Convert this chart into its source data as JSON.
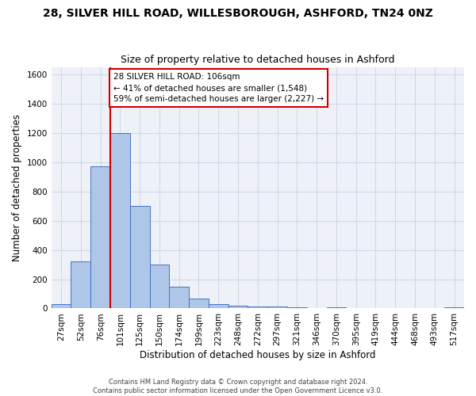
{
  "title_line1": "28, SILVER HILL ROAD, WILLESBOROUGH, ASHFORD, TN24 0NZ",
  "title_line2": "Size of property relative to detached houses in Ashford",
  "xlabel": "Distribution of detached houses by size in Ashford",
  "ylabel": "Number of detached properties",
  "footnote": "Contains HM Land Registry data © Crown copyright and database right 2024.\nContains public sector information licensed under the Open Government Licence v3.0.",
  "bar_labels": [
    "27sqm",
    "52sqm",
    "76sqm",
    "101sqm",
    "125sqm",
    "150sqm",
    "174sqm",
    "199sqm",
    "223sqm",
    "248sqm",
    "272sqm",
    "297sqm",
    "321sqm",
    "346sqm",
    "370sqm",
    "395sqm",
    "419sqm",
    "444sqm",
    "468sqm",
    "493sqm",
    "517sqm"
  ],
  "bar_values": [
    30,
    320,
    970,
    1200,
    700,
    300,
    150,
    70,
    30,
    20,
    15,
    15,
    10,
    0,
    10,
    0,
    0,
    0,
    0,
    0,
    10
  ],
  "bar_color": "#aec6e8",
  "bar_edge_color": "#4472c4",
  "highlight_bar_index": 3,
  "highlight_color": "#cc0000",
  "annotation_text": "28 SILVER HILL ROAD: 106sqm\n← 41% of detached houses are smaller (1,548)\n59% of semi-detached houses are larger (2,227) →",
  "annotation_box_color": "#cc0000",
  "ylim": [
    0,
    1650
  ],
  "yticks": [
    0,
    200,
    400,
    600,
    800,
    1000,
    1200,
    1400,
    1600
  ],
  "grid_color": "#d0d8e8",
  "bg_color": "#eef2f8",
  "title1_fontsize": 10,
  "title2_fontsize": 9,
  "xlabel_fontsize": 8.5,
  "ylabel_fontsize": 8.5,
  "tick_fontsize": 7.5,
  "footnote_fontsize": 6,
  "annotation_fontsize": 7.5
}
